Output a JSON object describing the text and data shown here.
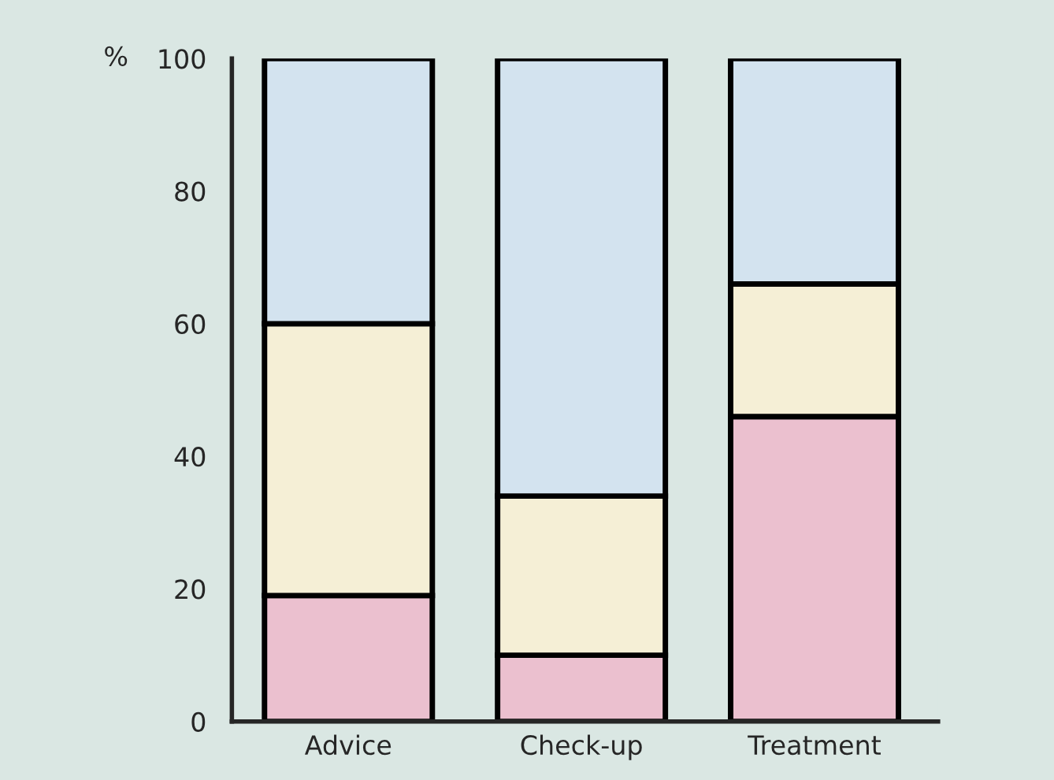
{
  "chart_data": {
    "type": "bar",
    "stacked": true,
    "ylabel": "%",
    "categories": [
      "Advice",
      "Check-up",
      "Treatment"
    ],
    "series": [
      {
        "color": "#ebc0cf",
        "values": [
          19,
          10,
          46
        ]
      },
      {
        "color": "#f5efd6",
        "values": [
          41,
          24,
          20
        ]
      },
      {
        "color": "#d3e3ef",
        "values": [
          40,
          66,
          34
        ]
      }
    ],
    "ylim": [
      0,
      100
    ],
    "yticks": [
      0,
      20,
      40,
      60,
      80,
      100
    ],
    "grid": false,
    "legend": false
  }
}
